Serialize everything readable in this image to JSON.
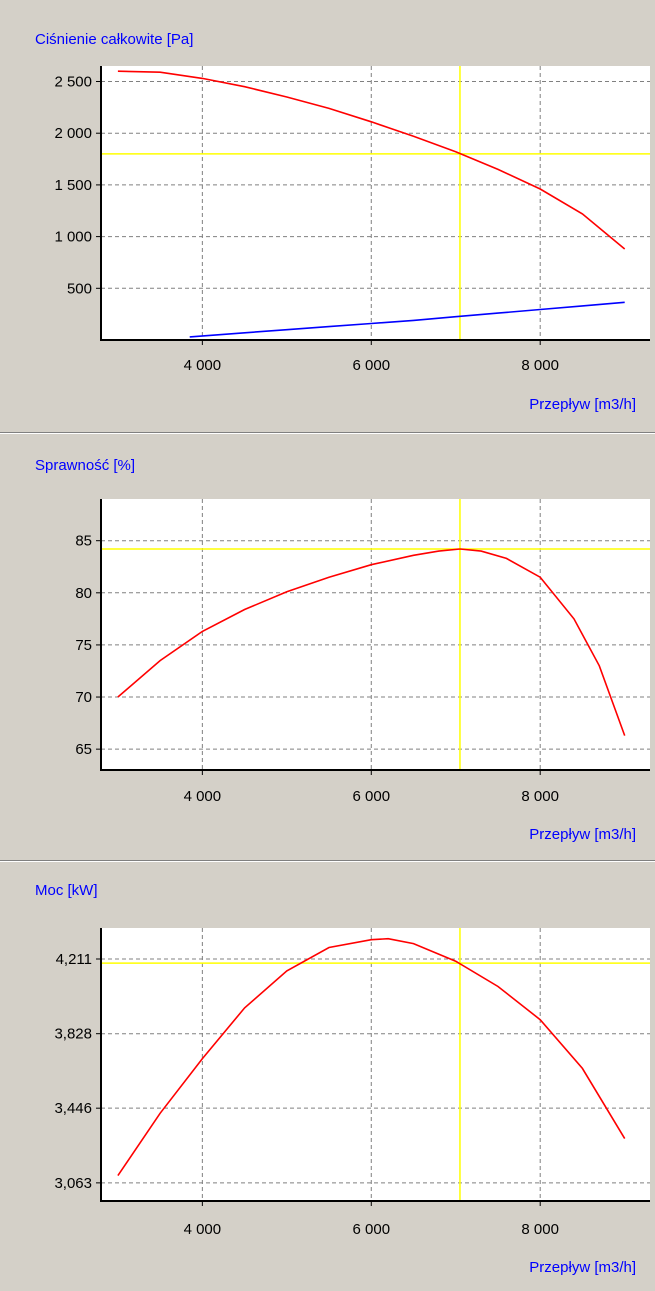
{
  "colors": {
    "background": "#d4d0c8",
    "plot_background": "#ffffff",
    "grid": "#808080",
    "axis_label": "#0000ff",
    "curve_main": "#ff0000",
    "curve_system": "#0000ff",
    "operating_point": "#ffff00"
  },
  "chart_data": [
    {
      "type": "line",
      "ylabel": "Ciśnienie całkowite [Pa]",
      "xlabel": "Przepływ [m3/h]",
      "xlim": [
        2800,
        9300
      ],
      "ylim": [
        0,
        2650
      ],
      "xticks": [
        4000,
        6000,
        8000
      ],
      "xtick_labels": [
        "4 000",
        "6 000",
        "8 000"
      ],
      "yticks": [
        500,
        1000,
        1500,
        2000,
        2500
      ],
      "ytick_labels": [
        "500",
        "1 000",
        "1 500",
        "2 000",
        "2 500"
      ],
      "grid": true,
      "operating_point": {
        "x": 7050,
        "y": 1800
      },
      "series": [
        {
          "color": "#ff0000",
          "x": [
            3000,
            3500,
            4000,
            4500,
            5000,
            5500,
            6000,
            6500,
            7000,
            7500,
            8000,
            8500,
            9000
          ],
          "y": [
            2600,
            2590,
            2530,
            2450,
            2350,
            2240,
            2110,
            1970,
            1820,
            1650,
            1460,
            1220,
            880
          ]
        },
        {
          "color": "#0000ff",
          "x": [
            3850,
            4500,
            5000,
            5500,
            6000,
            6500,
            7000,
            7500,
            8000,
            8500,
            9000
          ],
          "y": [
            30,
            70,
            100,
            130,
            160,
            190,
            225,
            260,
            295,
            330,
            365
          ]
        }
      ]
    },
    {
      "type": "line",
      "ylabel": "Sprawność [%]",
      "xlabel": "Przepływ [m3/h]",
      "xlim": [
        2800,
        9300
      ],
      "ylim": [
        63,
        89
      ],
      "xticks": [
        4000,
        6000,
        8000
      ],
      "xtick_labels": [
        "4 000",
        "6 000",
        "8 000"
      ],
      "yticks": [
        65,
        70,
        75,
        80,
        85
      ],
      "ytick_labels": [
        "65",
        "70",
        "75",
        "80",
        "85"
      ],
      "grid": true,
      "operating_point": {
        "x": 7050,
        "y": 84.2
      },
      "series": [
        {
          "color": "#ff0000",
          "x": [
            3000,
            3500,
            4000,
            4500,
            5000,
            5500,
            6000,
            6500,
            6800,
            7050,
            7300,
            7600,
            8000,
            8400,
            8700,
            9000
          ],
          "y": [
            70,
            73.5,
            76.3,
            78.4,
            80.1,
            81.5,
            82.7,
            83.6,
            84.0,
            84.2,
            84.0,
            83.3,
            81.5,
            77.5,
            73.0,
            66.3
          ]
        }
      ]
    },
    {
      "type": "line",
      "ylabel": "Moc [kW]",
      "xlabel": "Przepływ [m3/h]",
      "xlim": [
        2800,
        9300
      ],
      "ylim": [
        2970,
        4370
      ],
      "xticks": [
        4000,
        6000,
        8000
      ],
      "xtick_labels": [
        "4 000",
        "6 000",
        "8 000"
      ],
      "yticks": [
        3063,
        3446,
        3828,
        4211
      ],
      "ytick_labels": [
        "3,063",
        "3,446",
        "3,828",
        "4,211"
      ],
      "grid": true,
      "operating_point": {
        "x": 7050,
        "y": 4190
      },
      "series": [
        {
          "color": "#ff0000",
          "x": [
            3000,
            3500,
            4000,
            4500,
            5000,
            5500,
            6000,
            6200,
            6500,
            7000,
            7500,
            8000,
            8500,
            9000
          ],
          "y": [
            3100,
            3420,
            3700,
            3960,
            4150,
            4270,
            4310,
            4315,
            4290,
            4200,
            4070,
            3900,
            3650,
            3290
          ]
        }
      ]
    }
  ]
}
